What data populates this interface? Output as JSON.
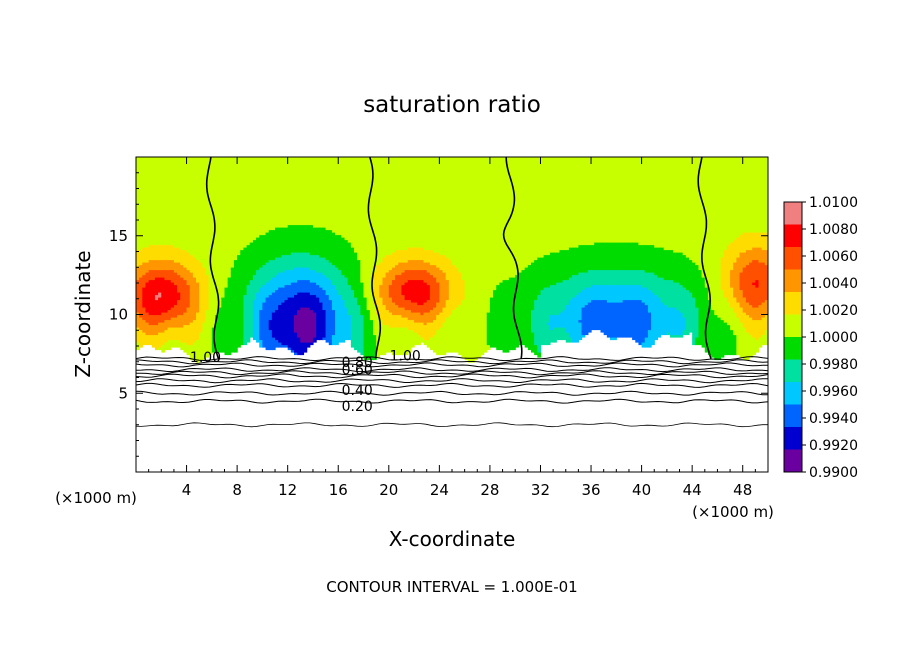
{
  "chart_data": {
    "type": "heatmap",
    "title": "saturation ratio",
    "xlabel": "X-coordinate",
    "ylabel": "Z-coordinate",
    "x_unit": "(×1000 m)",
    "y_unit": "(×1000 m)",
    "xlim": [
      0,
      50
    ],
    "ylim": [
      0,
      20
    ],
    "x_ticks": [
      4,
      8,
      12,
      16,
      20,
      24,
      28,
      32,
      36,
      40,
      44,
      48
    ],
    "y_ticks": [
      5,
      10,
      15
    ],
    "footer": "CONTOUR INTERVAL = 1.000E-01",
    "colorbar": {
      "min": 0.99,
      "max": 1.01,
      "labels": [
        "1.0100",
        "1.0080",
        "1.0060",
        "1.0040",
        "1.0020",
        "1.0000",
        "0.9980",
        "0.9960",
        "0.9940",
        "0.9920",
        "0.9900"
      ],
      "colors": [
        "#f08080",
        "#ff0000",
        "#ff5000",
        "#ff9600",
        "#ffdc00",
        "#c8ff00",
        "#00dc00",
        "#00e0a0",
        "#00c8ff",
        "#0064ff",
        "#0000d0",
        "#6a00a0"
      ]
    },
    "contour_labels": [
      {
        "text": "1.00",
        "x": 5.5,
        "z": 7.3
      },
      {
        "text": "1.00",
        "x": 21.3,
        "z": 7.4
      },
      {
        "text": "0.80",
        "x": 17.5,
        "z": 7.0
      },
      {
        "text": "0.60",
        "x": 17.5,
        "z": 6.5
      },
      {
        "text": "0.40",
        "x": 17.5,
        "z": 5.2
      },
      {
        "text": "0.20",
        "x": 17.5,
        "z": 4.2
      }
    ],
    "contour_lines_below": [
      7.2,
      7.0,
      6.8,
      6.5,
      6.3,
      6.1,
      5.8,
      5.5,
      5.0,
      4.5,
      3.0
    ],
    "supersaturation_boundaries_x": [
      6.5,
      19.2,
      30.3,
      45.4
    ]
  }
}
